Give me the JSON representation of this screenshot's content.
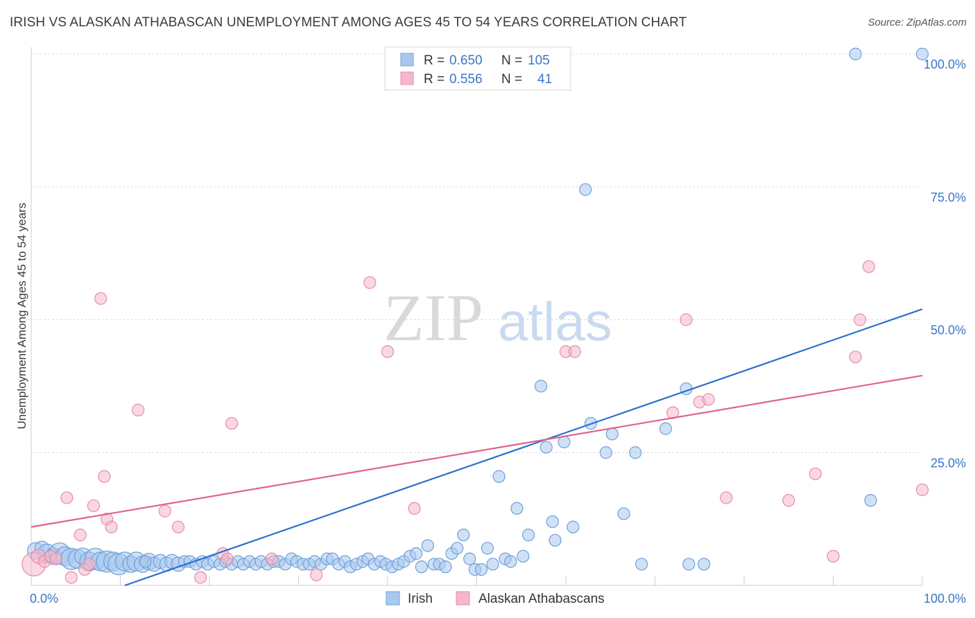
{
  "title": "IRISH VS ALASKAN ATHABASCAN UNEMPLOYMENT AMONG AGES 45 TO 54 YEARS CORRELATION CHART",
  "source": "Source: ZipAtlas.com",
  "watermark": {
    "zip": "ZIP",
    "atlas": "atlas"
  },
  "colors": {
    "irish_fill": "#a9c8ef",
    "irish_stroke": "#6f9fd8",
    "irish_line": "#2d6fd0",
    "alaskan_fill": "#f5b8cb",
    "alaskan_stroke": "#e88aa8",
    "alaskan_line": "#e0628e",
    "tick_text": "#3a74c7",
    "grid": "#d8d8d8"
  },
  "legend_top": [
    {
      "r_label": "R = ",
      "r_value": "0.650",
      "n_label": "N = ",
      "n_value": "105",
      "series": "irish"
    },
    {
      "r_label": "R = ",
      "r_value": "0.556",
      "n_label": "N = ",
      "n_value": "41",
      "series": "alaskan"
    }
  ],
  "chart_data": {
    "type": "scatter",
    "ylabel": "Unemployment Among Ages 45 to 54 years",
    "xlim": [
      0,
      100
    ],
    "ylim": [
      0,
      100
    ],
    "x_tick_labels": [
      "0.0%",
      "100.0%"
    ],
    "y_tick_labels": [
      "25.0%",
      "50.0%",
      "75.0%",
      "100.0%"
    ],
    "y_ticks": [
      25,
      50,
      75,
      100
    ],
    "grid": true,
    "legend": "bottom",
    "series": [
      {
        "name": "Irish",
        "key": "irish",
        "trend": {
          "x": [
            10.5,
            100
          ],
          "y": [
            0,
            52
          ]
        },
        "points": [
          [
            0.5,
            6.5,
            14
          ],
          [
            1.2,
            7,
            12
          ],
          [
            1.8,
            6,
            16
          ],
          [
            2.5,
            5.5,
            14
          ],
          [
            3.2,
            6,
            18
          ],
          [
            3.8,
            5.5,
            16
          ],
          [
            4.5,
            5,
            18
          ],
          [
            5.2,
            5,
            16
          ],
          [
            5.8,
            5.5,
            14
          ],
          [
            6.5,
            4.5,
            16
          ],
          [
            7.2,
            5,
            18
          ],
          [
            7.8,
            4.5,
            16
          ],
          [
            8.5,
            4.5,
            18
          ],
          [
            9.2,
            4.5,
            16
          ],
          [
            9.8,
            4,
            18
          ],
          [
            10.5,
            4.5,
            16
          ],
          [
            11.2,
            4,
            14
          ],
          [
            11.8,
            4.5,
            16
          ],
          [
            12.5,
            4,
            14
          ],
          [
            13.2,
            4.5,
            14
          ],
          [
            13.8,
            4,
            12
          ],
          [
            14.5,
            4.5,
            12
          ],
          [
            15.2,
            4,
            12
          ],
          [
            15.8,
            4.5,
            12
          ],
          [
            16.5,
            4,
            12
          ],
          [
            17.2,
            4.5,
            10
          ],
          [
            17.8,
            4.5,
            10
          ],
          [
            18.5,
            4,
            10
          ],
          [
            19.2,
            4.5,
            10
          ],
          [
            19.8,
            4,
            10
          ],
          [
            20.5,
            4.5,
            10
          ],
          [
            21.2,
            4,
            10
          ],
          [
            21.8,
            4.5,
            10
          ],
          [
            22.5,
            4,
            10
          ],
          [
            23.2,
            4.5,
            10
          ],
          [
            23.8,
            4,
            10
          ],
          [
            24.5,
            4.5,
            10
          ],
          [
            25.2,
            4,
            10
          ],
          [
            25.8,
            4.5,
            10
          ],
          [
            26.5,
            4,
            10
          ],
          [
            27.2,
            4.5,
            10
          ],
          [
            27.8,
            4.5,
            10
          ],
          [
            28.5,
            4,
            10
          ],
          [
            29.2,
            5,
            10
          ],
          [
            29.8,
            4.5,
            10
          ],
          [
            30.5,
            4,
            10
          ],
          [
            31.2,
            4,
            10
          ],
          [
            31.8,
            4.5,
            10
          ],
          [
            32.5,
            4,
            10
          ],
          [
            33.2,
            5,
            10
          ],
          [
            33.8,
            5,
            10
          ],
          [
            34.5,
            4,
            10
          ],
          [
            35.2,
            4.5,
            10
          ],
          [
            35.8,
            3.5,
            10
          ],
          [
            36.5,
            4,
            10
          ],
          [
            37.2,
            4.5,
            10
          ],
          [
            37.8,
            5,
            10
          ],
          [
            38.5,
            4,
            10
          ],
          [
            39.2,
            4.5,
            10
          ],
          [
            39.8,
            4,
            10
          ],
          [
            40.5,
            3.5,
            10
          ],
          [
            41.2,
            4,
            10
          ],
          [
            41.8,
            4.5,
            10
          ],
          [
            42.5,
            5.5,
            10
          ],
          [
            43.2,
            6,
            10
          ],
          [
            43.8,
            3.5,
            10
          ],
          [
            44.5,
            7.5,
            10
          ],
          [
            45.2,
            4,
            10
          ],
          [
            45.8,
            4,
            10
          ],
          [
            46.5,
            3.5,
            10
          ],
          [
            47.2,
            6,
            10
          ],
          [
            47.8,
            7,
            10
          ],
          [
            48.5,
            9.5,
            10
          ],
          [
            49.2,
            5,
            10
          ],
          [
            49.8,
            3,
            10
          ],
          [
            50.5,
            3,
            10
          ],
          [
            51.2,
            7,
            10
          ],
          [
            51.8,
            4,
            10
          ],
          [
            52.5,
            20.5,
            10
          ],
          [
            53.2,
            5,
            10
          ],
          [
            53.8,
            4.5,
            10
          ],
          [
            54.5,
            14.5,
            10
          ],
          [
            55.2,
            5.5,
            10
          ],
          [
            55.8,
            9.5,
            10
          ],
          [
            57.2,
            37.5,
            10
          ],
          [
            57.8,
            26,
            10
          ],
          [
            58.5,
            12,
            10
          ],
          [
            58.8,
            8.5,
            10
          ],
          [
            59.8,
            27,
            10
          ],
          [
            60.8,
            11,
            10
          ],
          [
            62.8,
            30.5,
            10
          ],
          [
            62.2,
            74.5,
            10
          ],
          [
            64.5,
            25,
            10
          ],
          [
            65.2,
            28.5,
            10
          ],
          [
            66.5,
            13.5,
            10
          ],
          [
            67.8,
            25,
            10
          ],
          [
            68.5,
            4,
            10
          ],
          [
            71.2,
            29.5,
            10
          ],
          [
            73.5,
            37,
            10
          ],
          [
            73.8,
            4,
            10
          ],
          [
            75.5,
            4,
            10
          ],
          [
            92.5,
            100,
            10
          ],
          [
            94.2,
            16,
            10
          ],
          [
            100,
            100,
            10
          ],
          [
            12.8,
            4.5,
            10
          ]
        ]
      },
      {
        "name": "Alaskan Athabascans",
        "key": "alaskan",
        "trend": {
          "x": [
            0,
            100
          ],
          "y": [
            11,
            39.5
          ]
        },
        "points": [
          [
            0.3,
            4,
            20
          ],
          [
            0.8,
            5.5,
            12
          ],
          [
            1.5,
            4.5,
            10
          ],
          [
            2.2,
            5.5,
            10
          ],
          [
            2.8,
            5,
            10
          ],
          [
            4,
            16.5,
            10
          ],
          [
            4.5,
            1.5,
            10
          ],
          [
            5.5,
            9.5,
            10
          ],
          [
            6,
            3,
            10
          ],
          [
            6.5,
            4,
            10
          ],
          [
            7,
            15,
            10
          ],
          [
            8.5,
            12.5,
            10
          ],
          [
            9,
            11,
            10
          ],
          [
            8.2,
            20.5,
            10
          ],
          [
            7.8,
            54,
            10
          ],
          [
            12,
            33,
            10
          ],
          [
            15,
            14,
            10
          ],
          [
            16.5,
            11,
            10
          ],
          [
            21.5,
            6,
            10
          ],
          [
            22,
            5,
            10
          ],
          [
            22.5,
            30.5,
            10
          ],
          [
            27,
            5,
            10
          ],
          [
            32,
            2,
            10
          ],
          [
            38,
            57,
            10
          ],
          [
            40,
            44,
            10
          ],
          [
            43,
            14.5,
            10
          ],
          [
            60,
            44,
            10
          ],
          [
            61,
            44,
            10
          ],
          [
            72,
            32.5,
            10
          ],
          [
            73.5,
            50,
            10
          ],
          [
            75,
            34.5,
            10
          ],
          [
            76,
            35,
            10
          ],
          [
            78,
            16.5,
            10
          ],
          [
            85,
            16,
            10
          ],
          [
            88,
            21,
            10
          ],
          [
            90,
            5.5,
            10
          ],
          [
            92.5,
            43,
            10
          ],
          [
            93,
            50,
            10
          ],
          [
            94,
            60,
            10
          ],
          [
            100,
            18,
            10
          ],
          [
            19,
            1.5,
            10
          ]
        ]
      }
    ]
  }
}
